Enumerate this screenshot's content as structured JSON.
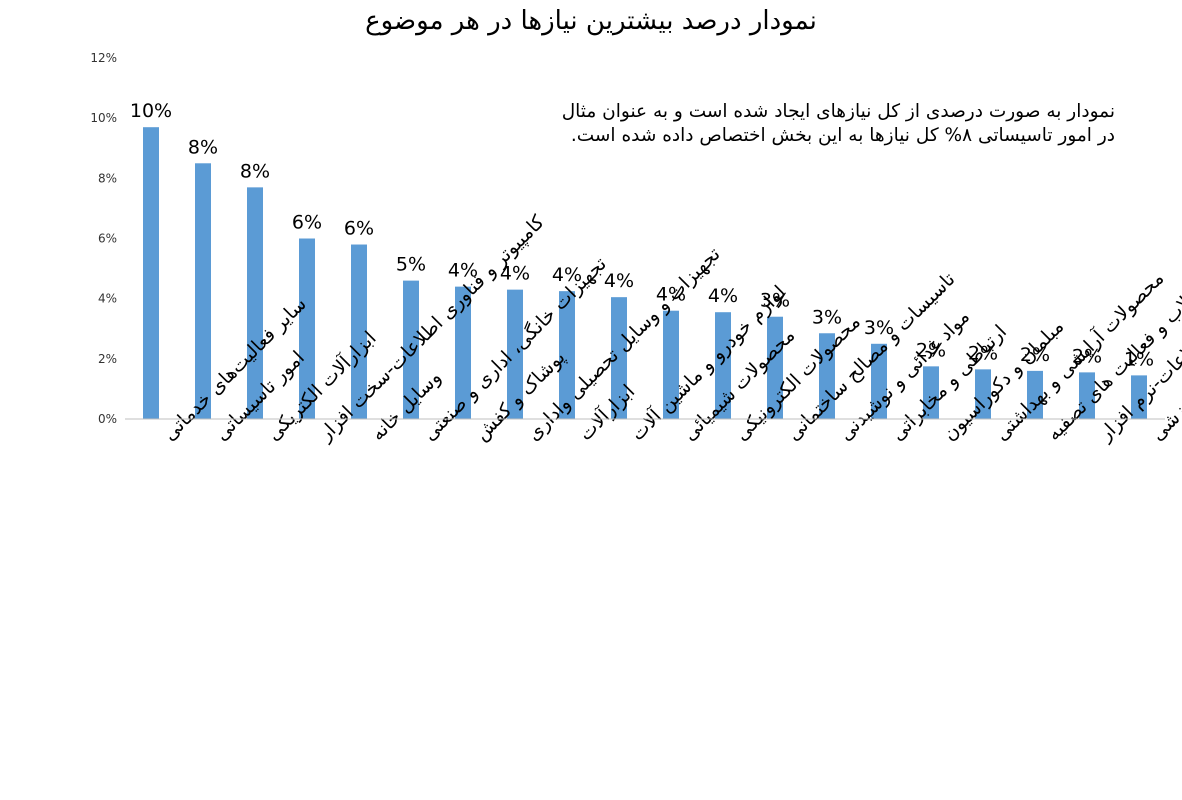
{
  "chart_data": {
    "type": "bar",
    "title": "نمودار درصد بیشترین نیازها در هر موضوع",
    "annotation": "نمودار به صورت درصدی از کل نیازهای ایجاد شده است و به عنوان مثال در امور تاسیساتی ۸% کل نیازها به این بخش اختصاص داده شده است.",
    "ylim": [
      0,
      12
    ],
    "yticks": [
      "0%",
      "2%",
      "4%",
      "6%",
      "8%",
      "10%",
      "12%"
    ],
    "grid": false,
    "bar_color": "#5b9bd5",
    "categories": [
      "سایر فعالیت‌های خدماتی",
      "امور تاسیساتی",
      "ابزارآلات الکتریکی",
      "کامپیوتر و فناوری اطلاعات-سخت افزار",
      "وسایل خانه",
      "تجهیزات خانگی، اداری و صنعتی",
      "پوشاک و کفش",
      "تجهیزات و وسایل تحصیلی واداری",
      "ابزارآلات",
      "لوازم خودرو و ماشین آلات",
      "محصولات شیمیائی",
      "محصولات الکترونیکی",
      "تاسیسات و مصالح ساختمانی",
      "مواد غذائی و نوشیدنی",
      "ارتباطی و مخابراتی",
      "مبلمان و دکوراسیون",
      "محصولات آرایشی و بهداشتی",
      "آب رسانی؛ مدیریت پسماند، فاضلاب و فعالیت های تصفیه",
      "کامپیوتر و فناوری اطلاعات-نرم افزار",
      "ورزشی"
    ],
    "values": [
      9.7,
      8.5,
      7.7,
      6.0,
      5.8,
      4.6,
      4.4,
      4.3,
      4.25,
      4.05,
      3.6,
      3.55,
      3.4,
      2.85,
      2.5,
      1.75,
      1.65,
      1.6,
      1.55,
      1.45
    ],
    "data_labels": [
      "10%",
      "8%",
      "8%",
      "6%",
      "6%",
      "5%",
      "4%",
      "4%",
      "4%",
      "4%",
      "4%",
      "4%",
      "3%",
      "3%",
      "3%",
      "2%",
      "2%",
      "2%",
      "2%",
      "1%"
    ]
  }
}
